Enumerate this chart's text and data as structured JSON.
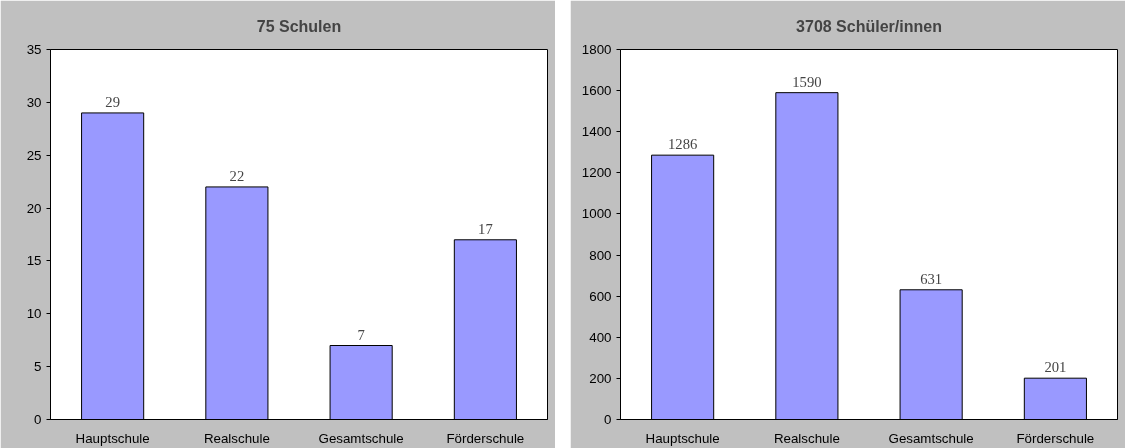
{
  "chart_data": [
    {
      "type": "bar",
      "title": "75 Schulen",
      "categories": [
        "Hauptschule",
        "Realschule",
        "Gesamtschule",
        "Förderschule"
      ],
      "values": [
        29,
        22,
        7,
        17
      ],
      "color": "#9999ff",
      "ylim": [
        0,
        35
      ],
      "yticks": [
        0,
        5,
        10,
        15,
        20,
        25,
        30,
        35
      ],
      "data_labels": true
    },
    {
      "type": "bar",
      "title": "3708 Schüler/innen",
      "categories": [
        "Hauptschule",
        "Realschule",
        "Gesamtschule",
        "Förderschule"
      ],
      "values": [
        1286,
        1590,
        631,
        201
      ],
      "color": "#9999ff",
      "ylim": [
        0,
        1800
      ],
      "yticks": [
        0,
        200,
        400,
        600,
        800,
        1000,
        1200,
        1400,
        1600,
        1800
      ],
      "data_labels": true
    }
  ]
}
